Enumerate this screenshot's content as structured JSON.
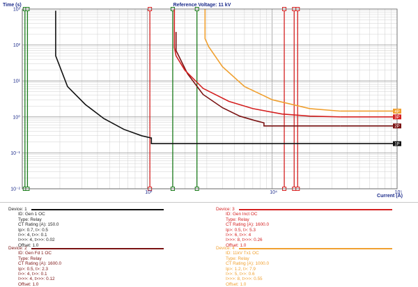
{
  "chart_data": {
    "type": "line",
    "title": "Reference Voltage: 11 kV",
    "xlabel": "Current (A)",
    "ylabel": "Time (s)",
    "x_scale": "log",
    "y_scale": "log",
    "xlim": [
      100,
      100000
    ],
    "ylim": [
      0.01,
      1000
    ],
    "grid": true,
    "x_ticks": [
      "10³",
      "10⁴",
      "10⁵"
    ],
    "y_ticks": [
      "10⁻²",
      "10⁻¹",
      "10⁰",
      "10¹",
      "10²",
      "10³"
    ],
    "series": [
      {
        "name": "1P",
        "color": "#111111",
        "x": [
          185,
          185,
          230,
          320,
          450,
          650,
          900,
          1070,
          1080,
          1080,
          15000
        ],
        "y": [
          900,
          50,
          7,
          2.2,
          0.9,
          0.45,
          0.3,
          0.26,
          0.26,
          0.18,
          0.18
        ]
      },
      {
        "name": "2P",
        "color": "#7a1212",
        "x": [
          1700,
          1700,
          2100,
          2800,
          4000,
          5500,
          7200,
          8600,
          8600,
          35000
        ],
        "y": [
          230,
          70,
          16,
          4.2,
          1.8,
          1.05,
          0.8,
          0.68,
          0.56,
          0.56
        ]
      },
      {
        "name": "3P",
        "color": "#d42020",
        "x": [
          1650,
          1650,
          1700,
          2000,
          2800,
          4500,
          7000,
          12000,
          20000,
          35000
        ],
        "y": [
          1000,
          85,
          50,
          20,
          6.2,
          2.7,
          1.7,
          1.2,
          1.05,
          1.0
        ]
      },
      {
        "name": "4P",
        "color": "#f0a030",
        "x": [
          2900,
          2900,
          3100,
          4000,
          6000,
          10000,
          20000,
          35000
        ],
        "y": [
          1000,
          150,
          90,
          25,
          7,
          3,
          1.7,
          1.45
        ]
      }
    ],
    "vertical_markers": [
      {
        "color": "#1a7a1a",
        "x": 105
      },
      {
        "color": "#1a7a1a",
        "x": 110
      },
      {
        "color": "#d42020",
        "x": 1050
      },
      {
        "color": "#1a7a1a",
        "x": 1600
      },
      {
        "color": "#1a7a1a",
        "x": 2500
      },
      {
        "color": "#d42020",
        "x": 12500
      },
      {
        "color": "#d42020",
        "x": 15000
      },
      {
        "color": "#d42020",
        "x": 16000
      }
    ]
  },
  "devices": [
    {
      "title": "Device: 1",
      "color": "#111111",
      "lines": [
        "ID: Gen 1 OC",
        "Type: Relay",
        "CT Rating (A): 150.0",
        "Ip>: 0.7, t>: 0.5",
        "I>>: 4, t>>: 0.1",
        "I>>>: 4, t>>>: 0.02",
        "Offset: 1.0"
      ]
    },
    {
      "title": "Device: 2",
      "color": "#7a1212",
      "lines": [
        "ID: Gen Fd 1 OC",
        "Type: Relay",
        "CT Rating (A): 1600.0",
        "Ip>: 0.5, t>: 2.3",
        "I>>: 4, t>>: 0.1",
        "I>>>: 4, t>>>: 0.12",
        "Offset: 1.0"
      ]
    },
    {
      "title": "Device: 3",
      "color": "#d42020",
      "lines": [
        "ID: Gen Inct OC",
        "Type: Relay",
        "CT Rating (A): 1600.0",
        "Ip>: 0.5, t>: 5.3",
        "I>>: 6, t>>: 4",
        "I>>>: 8, t>>>: 0.26",
        "Offset: 1.0"
      ]
    },
    {
      "title": "Device: 4",
      "color": "#f0a030",
      "lines": [
        "ID: 11kV Tx1 OC",
        "Type: Relay",
        "CT Rating (A): 1000.0",
        "Ip>: 1.2, t>: 7.9",
        "I>>: 5, t>>: 0.6",
        "I>>>: 8, t>>>: 0.55",
        "Offset: 1.0"
      ]
    }
  ]
}
